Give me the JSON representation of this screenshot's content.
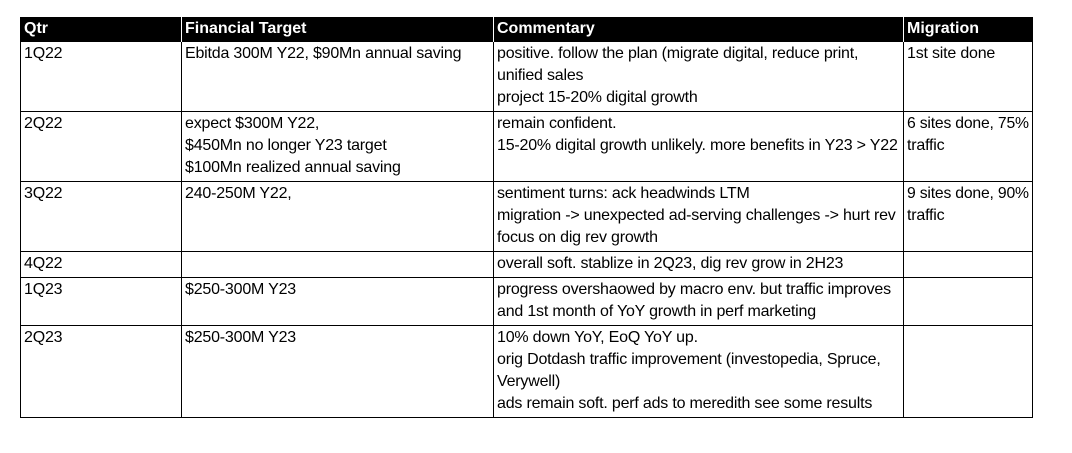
{
  "table": {
    "headers": [
      "Qtr",
      "Financial Target",
      "Commentary",
      "Migration"
    ],
    "rows": [
      {
        "qtr": "1Q22",
        "target": [
          "Ebitda 300M Y22, $90Mn annual saving"
        ],
        "commentary": [
          "positive. follow the plan (migrate digital, reduce print,",
          "unified sales",
          "project 15-20% digital growth"
        ],
        "migration": [
          "1st site done"
        ]
      },
      {
        "qtr": "2Q22",
        "target": [
          "expect $300M Y22,",
          "$450Mn no longer Y23 target",
          "$100Mn realized annual saving"
        ],
        "commentary": [
          "remain confident.",
          "15-20% digital growth unlikely. more benefits in Y23 > Y22"
        ],
        "migration": [
          "6 sites done, 75%",
          "traffic"
        ]
      },
      {
        "qtr": "3Q22",
        "target": [
          "240-250M Y22,"
        ],
        "commentary": [
          "sentiment turns: ack headwinds LTM",
          "migration -> unexpected ad-serving challenges -> hurt rev",
          "focus on dig rev growth"
        ],
        "migration": [
          "9 sites done, 90%",
          "traffic"
        ]
      },
      {
        "qtr": "4Q22",
        "target": [],
        "commentary": [
          "overall soft. stablize in 2Q23, dig rev grow in 2H23"
        ],
        "migration": []
      },
      {
        "qtr": "1Q23",
        "target": [
          "$250-300M Y23"
        ],
        "commentary": [
          "progress overshaowed by macro env. but traffic improves",
          "and 1st month of YoY growth in perf marketing"
        ],
        "migration": []
      },
      {
        "qtr": "2Q23",
        "target": [
          "$250-300M Y23"
        ],
        "commentary": [
          "10% down YoY, EoQ YoY up.",
          "orig Dotdash traffic improvement (investopedia, Spruce,",
          "Verywell)",
          "ads remain soft. perf ads to meredith see some results"
        ],
        "migration": []
      }
    ]
  }
}
